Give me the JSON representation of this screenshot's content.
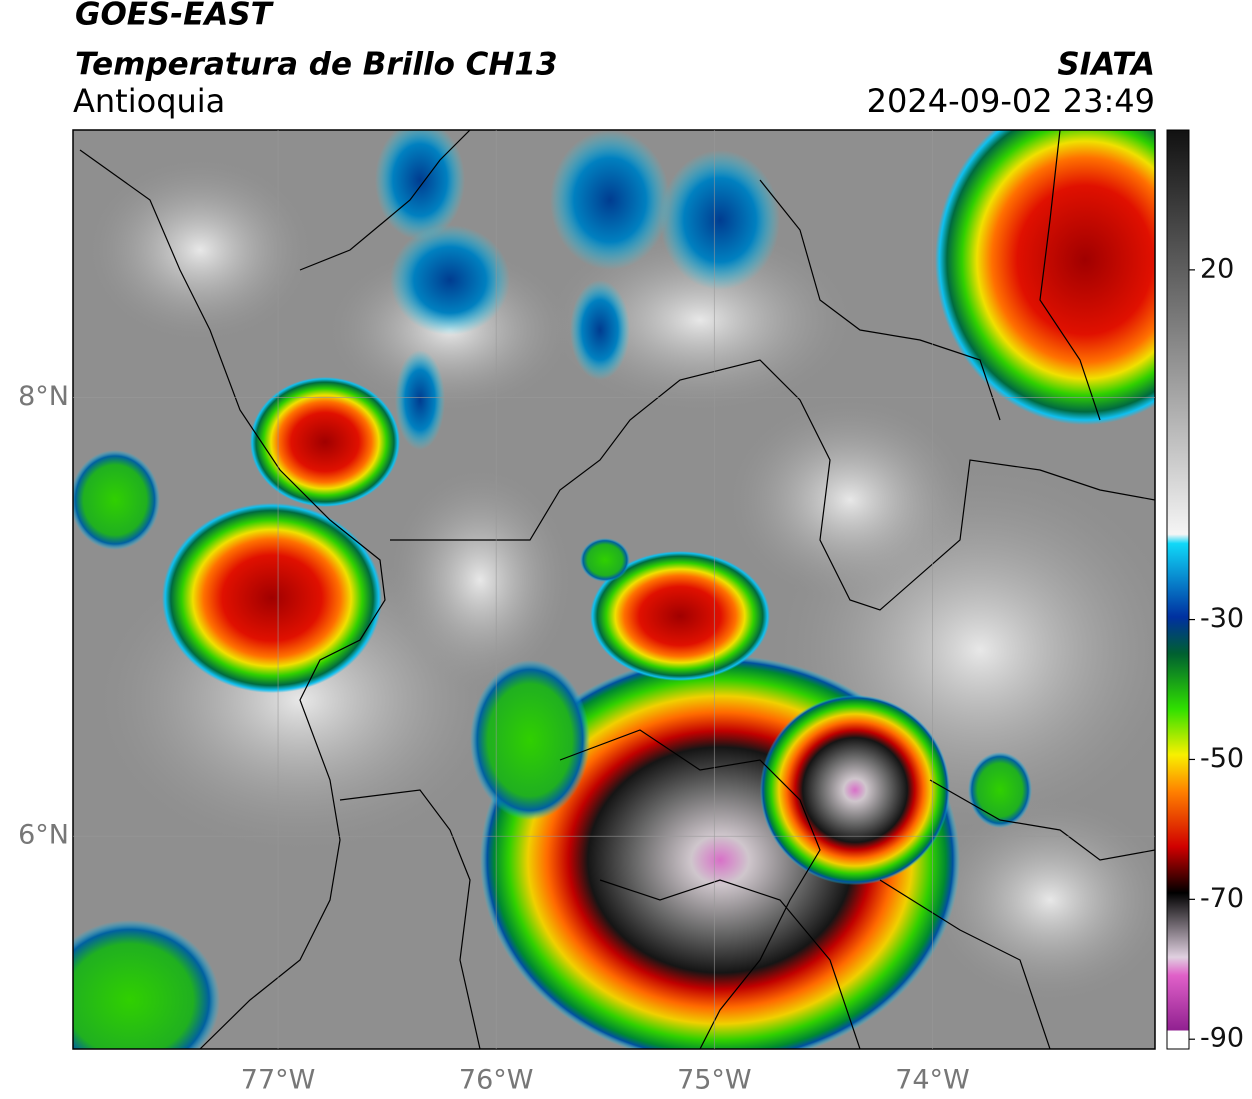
{
  "header": {
    "satellite": "GOES-EAST",
    "product": "Temperatura de Brillo CH13",
    "region": "Antioquia",
    "agency": "SIATA",
    "datetime": "2024-09-02 23:49"
  },
  "map": {
    "xlim": [
      -77.94,
      -72.98
    ],
    "ylim": [
      5.03,
      9.22
    ],
    "xticks": [
      {
        "value": -77,
        "label": "77°W"
      },
      {
        "value": -76,
        "label": "76°W"
      },
      {
        "value": -75,
        "label": "75°W"
      },
      {
        "value": -74,
        "label": "74°W"
      }
    ],
    "yticks": [
      {
        "value": 8,
        "label": "8°N"
      },
      {
        "value": 6,
        "label": "6°N"
      }
    ],
    "grid": true
  },
  "colorbar": {
    "lim": [
      -91.4,
      40
    ],
    "ticks": [
      20,
      -30,
      -50,
      -70,
      -90
    ]
  }
}
